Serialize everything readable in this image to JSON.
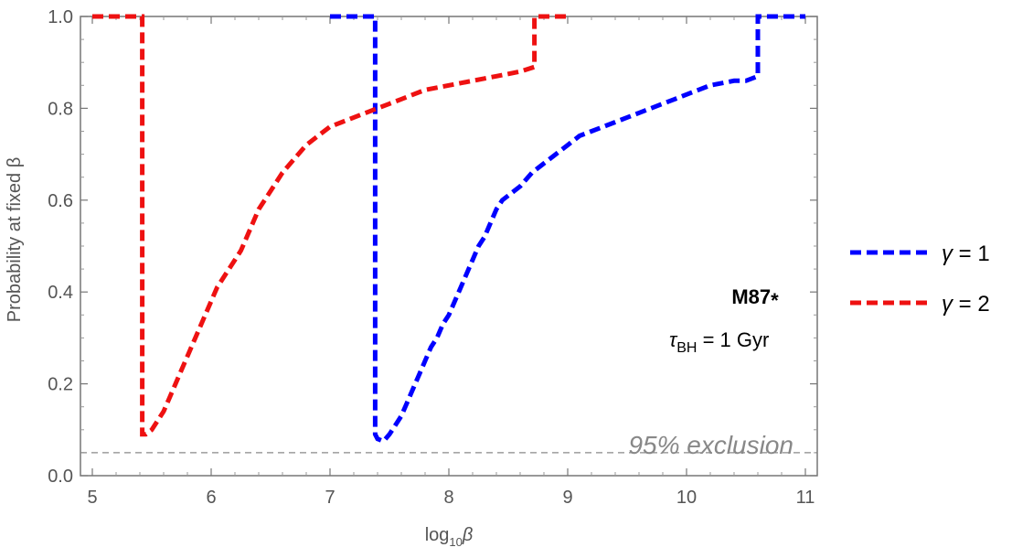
{
  "chart_data": {
    "type": "line",
    "title": "",
    "xlabel_main": "log",
    "xlabel_sub": "10",
    "xlabel_symbol": "β",
    "ylabel": "Probability at fixed β",
    "xlim": [
      4.9,
      11.1
    ],
    "ylim": [
      0.0,
      1.0
    ],
    "x_ticks": [
      5,
      6,
      7,
      8,
      9,
      10,
      11
    ],
    "x_tick_labels": [
      "5",
      "6",
      "7",
      "8",
      "9",
      "10",
      "11"
    ],
    "y_ticks": [
      0.0,
      0.2,
      0.4,
      0.6,
      0.8,
      1.0
    ],
    "y_tick_labels": [
      "0.0",
      "0.2",
      "0.4",
      "0.6",
      "0.8",
      "1.0"
    ],
    "threshold": {
      "y": 0.05,
      "label": "95% exclusion",
      "style": "dashed",
      "color": "#888888"
    },
    "annotations": {
      "object": "M87",
      "object_suffix": "*",
      "tau_symbol": "τ",
      "tau_sub": "BH",
      "tau_value": " = 1 Gyr"
    },
    "legend_position": "right",
    "series": [
      {
        "name": "γ = 1",
        "legend_symbol": "γ",
        "legend_value": " = 1",
        "color": "#0000ff",
        "x": [
          7.0,
          7.38,
          7.38,
          7.4,
          7.45,
          7.5,
          7.55,
          7.6,
          7.65,
          7.7,
          7.75,
          7.8,
          7.85,
          7.9,
          7.95,
          8.0,
          8.05,
          8.1,
          8.15,
          8.2,
          8.25,
          8.3,
          8.35,
          8.4,
          8.45,
          8.5,
          8.6,
          8.7,
          8.8,
          8.9,
          9.0,
          9.1,
          9.2,
          9.3,
          9.4,
          9.5,
          9.6,
          9.7,
          9.8,
          9.9,
          10.0,
          10.1,
          10.2,
          10.3,
          10.4,
          10.5,
          10.6,
          10.6,
          10.8,
          11.0
        ],
        "y": [
          1.0,
          1.0,
          0.09,
          0.08,
          0.075,
          0.09,
          0.11,
          0.13,
          0.16,
          0.19,
          0.22,
          0.25,
          0.28,
          0.3,
          0.33,
          0.35,
          0.38,
          0.41,
          0.44,
          0.47,
          0.5,
          0.52,
          0.55,
          0.58,
          0.6,
          0.61,
          0.63,
          0.66,
          0.68,
          0.7,
          0.72,
          0.74,
          0.75,
          0.76,
          0.77,
          0.78,
          0.79,
          0.8,
          0.81,
          0.82,
          0.83,
          0.84,
          0.85,
          0.855,
          0.86,
          0.86,
          0.87,
          1.0,
          1.0,
          1.0
        ]
      },
      {
        "name": "γ = 2",
        "legend_symbol": "γ",
        "legend_value": " = 2",
        "color": "#ee1111",
        "x": [
          5.0,
          5.42,
          5.42,
          5.45,
          5.5,
          5.55,
          5.6,
          5.65,
          5.7,
          5.75,
          5.8,
          5.85,
          5.9,
          5.95,
          6.0,
          6.05,
          6.1,
          6.15,
          6.2,
          6.25,
          6.3,
          6.35,
          6.4,
          6.45,
          6.5,
          6.6,
          6.7,
          6.8,
          6.9,
          7.0,
          7.1,
          7.2,
          7.3,
          7.4,
          7.5,
          7.6,
          7.7,
          7.8,
          7.9,
          8.0,
          8.1,
          8.2,
          8.3,
          8.4,
          8.5,
          8.6,
          8.72,
          8.72,
          8.9,
          9.0
        ],
        "y": [
          1.0,
          1.0,
          0.09,
          0.09,
          0.1,
          0.12,
          0.14,
          0.17,
          0.2,
          0.23,
          0.26,
          0.29,
          0.32,
          0.35,
          0.38,
          0.41,
          0.43,
          0.45,
          0.47,
          0.49,
          0.52,
          0.55,
          0.58,
          0.6,
          0.62,
          0.66,
          0.69,
          0.72,
          0.74,
          0.76,
          0.77,
          0.78,
          0.79,
          0.8,
          0.81,
          0.82,
          0.83,
          0.84,
          0.845,
          0.85,
          0.855,
          0.86,
          0.865,
          0.87,
          0.875,
          0.88,
          0.89,
          1.0,
          1.0,
          1.0
        ]
      }
    ]
  }
}
